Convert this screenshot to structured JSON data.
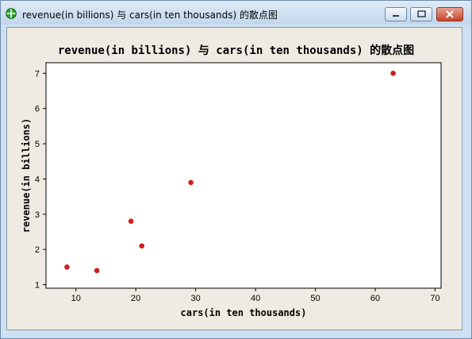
{
  "window": {
    "title": "revenue(in billions) 与 cars(in ten thousands) 的散点图"
  },
  "chart_data": {
    "type": "scatter",
    "title": "revenue(in billions) 与 cars(in ten thousands) 的散点图",
    "xlabel": "cars(in ten thousands)",
    "ylabel": "revenue(in billions)",
    "xlim": [
      5,
      71
    ],
    "ylim": [
      0.9,
      7.3
    ],
    "x_ticks": [
      10,
      20,
      30,
      40,
      50,
      60,
      70
    ],
    "y_ticks": [
      1,
      2,
      3,
      4,
      5,
      6,
      7
    ],
    "grid": false,
    "legend": "none",
    "marker_color": "#cc1f1f",
    "points": [
      {
        "x": 8.5,
        "y": 1.5
      },
      {
        "x": 13.5,
        "y": 1.4
      },
      {
        "x": 19.2,
        "y": 2.8
      },
      {
        "x": 21.0,
        "y": 2.1
      },
      {
        "x": 29.2,
        "y": 3.9
      },
      {
        "x": 63.0,
        "y": 7.0
      }
    ]
  }
}
